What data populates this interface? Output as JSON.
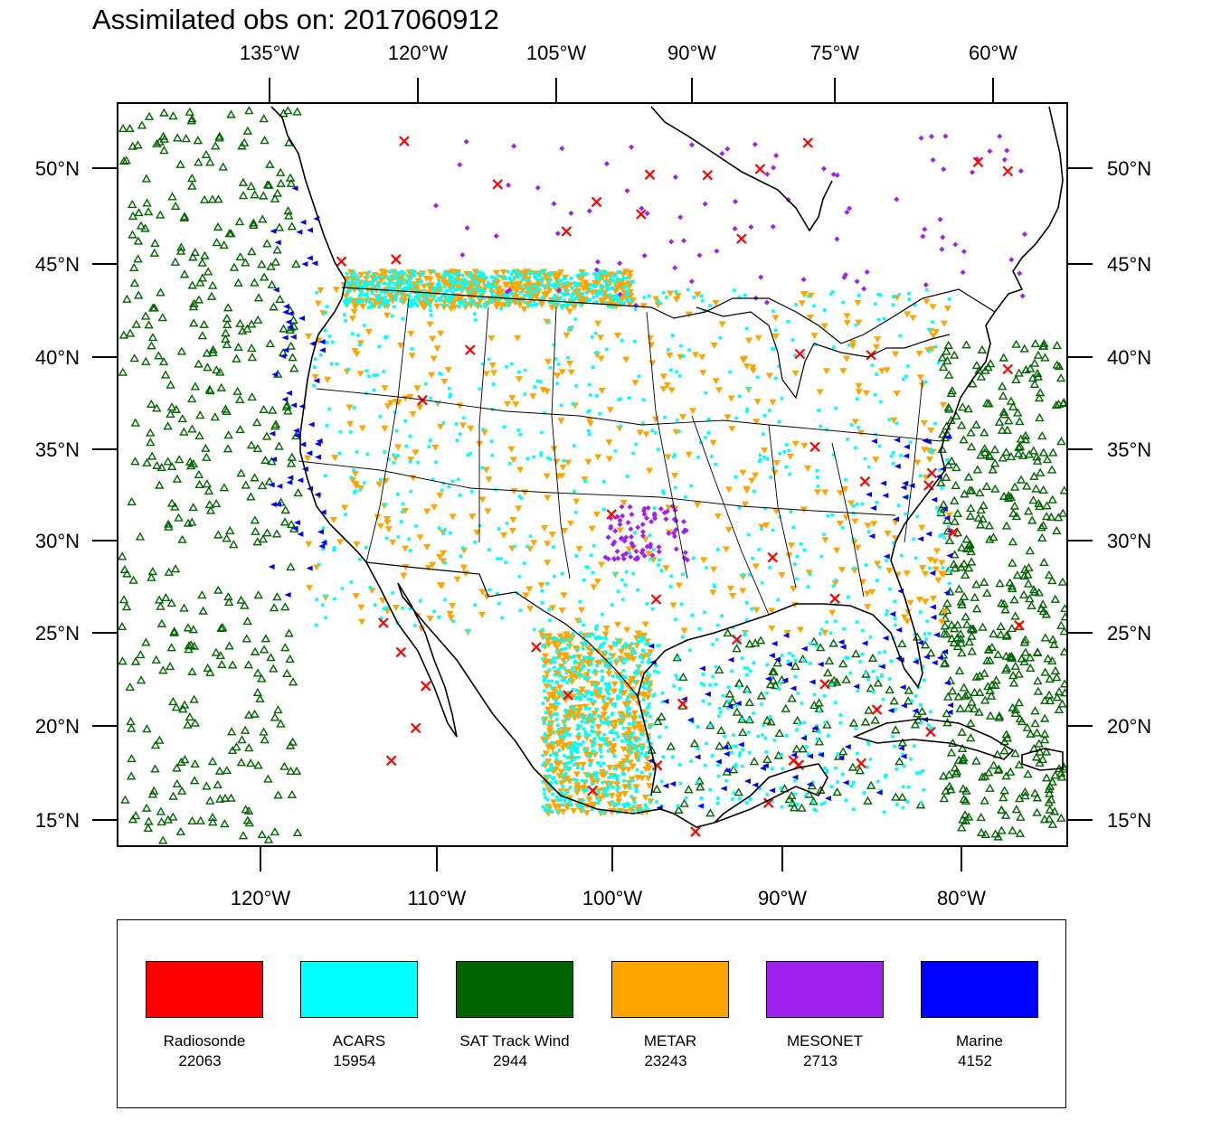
{
  "title": "Assimilated obs on: 2017060912",
  "map": {
    "top_lon_ticks": [
      "135°W",
      "120°W",
      "105°W",
      "90°W",
      "75°W",
      "60°W"
    ],
    "bottom_lon_ticks": [
      "120°W",
      "110°W",
      "100°W",
      "90°W",
      "80°W"
    ],
    "lat_ticks": [
      "50°N",
      "45°N",
      "40°N",
      "35°N",
      "30°N",
      "25°N",
      "20°N",
      "15°N"
    ],
    "lon_range_deg": [
      -128,
      -74.5
    ],
    "lat_range_deg": [
      13.5,
      53
    ],
    "projection": "Lambert conformal (conic)"
  },
  "legend": {
    "items": [
      {
        "label": "Radiosonde",
        "count": "22063",
        "color": "#ff0000",
        "marker": "x"
      },
      {
        "label": "ACARS",
        "count": "15954",
        "color": "#00ffff",
        "marker": "square"
      },
      {
        "label": "SAT Track Wind",
        "count": "2944",
        "color": "#006400",
        "marker": "triangle-up-open"
      },
      {
        "label": "METAR",
        "count": "23243",
        "color": "#ffa500",
        "marker": "triangle-down"
      },
      {
        "label": "MESONET",
        "count": "2713",
        "color": "#a020f0",
        "marker": "diamond"
      },
      {
        "label": "Marine",
        "count": "4152",
        "color": "#0000ff",
        "marker": "triangle-left"
      }
    ]
  }
}
